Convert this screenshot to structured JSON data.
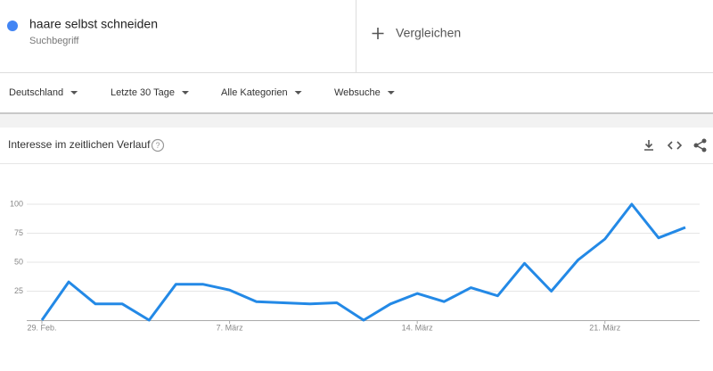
{
  "header": {
    "term_label": "Suchbegriff",
    "compare": "Vergleichen"
  },
  "filters": [
    "Deutschland",
    "Letzte 30 Tage",
    "Alle Kategorien",
    "Websuche"
  ],
  "chart_data": {
    "type": "line",
    "title": "Interesse im zeitlichen Verlauf",
    "categories": [
      "29. Feb.",
      null,
      null,
      null,
      null,
      null,
      null,
      "7. März",
      null,
      null,
      null,
      null,
      null,
      null,
      "14. März",
      null,
      null,
      null,
      null,
      null,
      null,
      "21. März",
      null,
      null,
      null
    ],
    "series": [
      {
        "name": "haare selbst schneiden",
        "color": "#2389e6",
        "values": [
          0,
          33,
          14,
          14,
          0,
          31,
          31,
          26,
          16,
          15,
          14,
          15,
          0,
          14,
          23,
          16,
          28,
          21,
          49,
          25,
          52,
          70,
          100,
          71,
          80
        ]
      }
    ],
    "ylim": [
      0,
      100
    ],
    "yticks": [
      25,
      50,
      75,
      100
    ],
    "grid": true
  }
}
